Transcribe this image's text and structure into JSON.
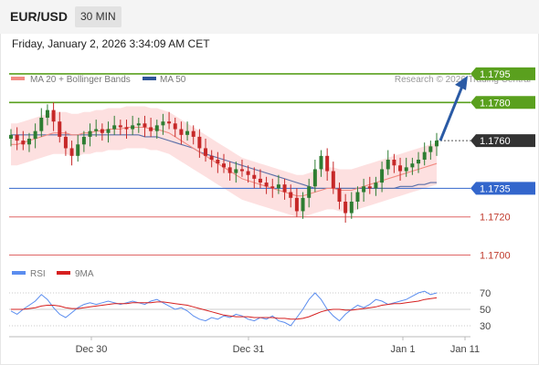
{
  "header": {
    "symbol": "EUR/USD",
    "timeframe": "30 MIN",
    "datetime": "Friday, January 2, 2026 3:34:09 AM CET"
  },
  "legend": {
    "ma20_label": "MA 20 + Bollinger Bands",
    "ma20_color": "#f28b82",
    "ma50_label": "MA 50",
    "ma50_color": "#2f5597",
    "credit": "Research © 2026 Trading Central"
  },
  "colors": {
    "up_candle": "#2e7d32",
    "down_candle": "#c62828",
    "bollinger_fill": "#fde0e0",
    "resistance": "#5aa01e",
    "support_blue": "#3366cc",
    "support_red": "#e06666",
    "current_label": "#333333",
    "arrow": "#2a5aa5",
    "rsi": "#5b8def",
    "rsi_ma": "#d62020"
  },
  "chart_data": [
    {
      "type": "candlestick",
      "title": "EUR/USD",
      "timeframe": "30 MIN",
      "x_ticks": [
        "Dec 30",
        "Dec 31",
        "Jan 1",
        "Jan 11"
      ],
      "ylim": [
        1.1695,
        1.1805
      ],
      "levels": [
        {
          "value": 1.1795,
          "label": "1.1795",
          "kind": "resistance"
        },
        {
          "value": 1.178,
          "label": "1.1780",
          "kind": "resistance"
        },
        {
          "value": 1.176,
          "label": "1.1760",
          "kind": "current"
        },
        {
          "value": 1.1735,
          "label": "1.1735",
          "kind": "pivot"
        },
        {
          "value": 1.172,
          "label": "1.1720",
          "kind": "support"
        },
        {
          "value": 1.17,
          "label": "1.1700",
          "kind": "support"
        }
      ],
      "close_series": [
        1.1763,
        1.176,
        1.1758,
        1.1761,
        1.1765,
        1.1772,
        1.1776,
        1.177,
        1.1762,
        1.1756,
        1.1752,
        1.1758,
        1.1762,
        1.1765,
        1.1766,
        1.1764,
        1.1766,
        1.1768,
        1.1767,
        1.1766,
        1.1768,
        1.1769,
        1.1767,
        1.1765,
        1.1768,
        1.177,
        1.1769,
        1.1766,
        1.1763,
        1.1765,
        1.1762,
        1.1756,
        1.1752,
        1.175,
        1.1748,
        1.1746,
        1.1743,
        1.1745,
        1.1744,
        1.1742,
        1.174,
        1.1738,
        1.1736,
        1.1735,
        1.1737,
        1.1733,
        1.173,
        1.1723,
        1.173,
        1.1736,
        1.1745,
        1.1752,
        1.1744,
        1.1735,
        1.1728,
        1.1722,
        1.1728,
        1.1733,
        1.1736,
        1.1735,
        1.1738,
        1.1745,
        1.175,
        1.1747,
        1.1744,
        1.1746,
        1.1748,
        1.175,
        1.1754,
        1.1757,
        1.176
      ],
      "ma20": [
        1.1758,
        1.1758,
        1.1759,
        1.176,
        1.1761,
        1.1762,
        1.1763,
        1.1764,
        1.1764,
        1.1764,
        1.1763,
        1.1763,
        1.1764,
        1.1764,
        1.1765,
        1.1765,
        1.1766,
        1.1766,
        1.1766,
        1.1767,
        1.1767,
        1.1767,
        1.1767,
        1.1766,
        1.1766,
        1.1765,
        1.1764,
        1.1762,
        1.176,
        1.1758,
        1.1756,
        1.1754,
        1.1752,
        1.175,
        1.1748,
        1.1746,
        1.1744,
        1.1742,
        1.174,
        1.1739,
        1.1738,
        1.1737,
        1.1736,
        1.1735,
        1.1734,
        1.1733,
        1.1732,
        1.1731,
        1.1731,
        1.1732,
        1.1733,
        1.1734,
        1.1735,
        1.1735,
        1.1734,
        1.1734,
        1.1734,
        1.1735,
        1.1736,
        1.1737,
        1.1738,
        1.1739,
        1.174,
        1.1741,
        1.1742,
        1.1743,
        1.1744,
        1.1745,
        1.1746,
        1.1747,
        1.1748
      ],
      "bollinger_width": 0.0011,
      "ma50": [
        1.1763,
        1.1763,
        1.1763,
        1.1763,
        1.1763,
        1.1763,
        1.1763,
        1.1763,
        1.1763,
        1.1763,
        1.1763,
        1.1763,
        1.1763,
        1.1763,
        1.1763,
        1.1763,
        1.1763,
        1.1763,
        1.1763,
        1.1763,
        1.1763,
        1.1763,
        1.1762,
        1.1762,
        1.1762,
        1.1761,
        1.176,
        1.1759,
        1.1758,
        1.1757,
        1.1756,
        1.1754,
        1.1753,
        1.1752,
        1.1751,
        1.175,
        1.1749,
        1.1748,
        1.1747,
        1.1746,
        1.1745,
        1.1744,
        1.1743,
        1.1742,
        1.1741,
        1.174,
        1.1739,
        1.1738,
        1.1737,
        1.1736,
        1.1735,
        1.1735,
        1.1735,
        1.1735,
        1.1735,
        1.1735,
        1.1735,
        1.1735,
        1.1735,
        1.1735,
        1.1735,
        1.1735,
        1.1735,
        1.1735,
        1.1736,
        1.1736,
        1.1736,
        1.1737,
        1.1737,
        1.1738,
        1.1738
      ]
    },
    {
      "type": "line",
      "title": "RSI",
      "y_ticks": [
        70,
        50,
        30
      ],
      "ylim": [
        20,
        80
      ],
      "series": [
        {
          "name": "RSI",
          "values": [
            48,
            44,
            50,
            55,
            60,
            68,
            62,
            52,
            44,
            40,
            46,
            52,
            56,
            58,
            56,
            58,
            60,
            58,
            56,
            58,
            60,
            58,
            56,
            60,
            62,
            58,
            54,
            50,
            52,
            48,
            42,
            38,
            36,
            40,
            38,
            42,
            40,
            44,
            42,
            38,
            36,
            40,
            38,
            42,
            36,
            34,
            30,
            40,
            50,
            62,
            70,
            62,
            50,
            42,
            36,
            44,
            50,
            55,
            52,
            56,
            62,
            60,
            56,
            58,
            60,
            62,
            66,
            70,
            72,
            68,
            70
          ]
        },
        {
          "name": "9MA",
          "values": [
            50,
            50,
            50,
            51,
            52,
            54,
            55,
            55,
            54,
            52,
            51,
            51,
            52,
            53,
            54,
            55,
            56,
            57,
            57,
            57,
            58,
            58,
            58,
            58,
            59,
            59,
            58,
            57,
            56,
            55,
            53,
            51,
            49,
            47,
            45,
            43,
            42,
            41,
            41,
            41,
            40,
            40,
            40,
            40,
            39,
            39,
            38,
            38,
            39,
            41,
            44,
            47,
            49,
            50,
            50,
            49,
            49,
            50,
            51,
            52,
            53,
            55,
            56,
            57,
            57,
            58,
            59,
            60,
            62,
            63,
            64
          ]
        }
      ]
    }
  ]
}
